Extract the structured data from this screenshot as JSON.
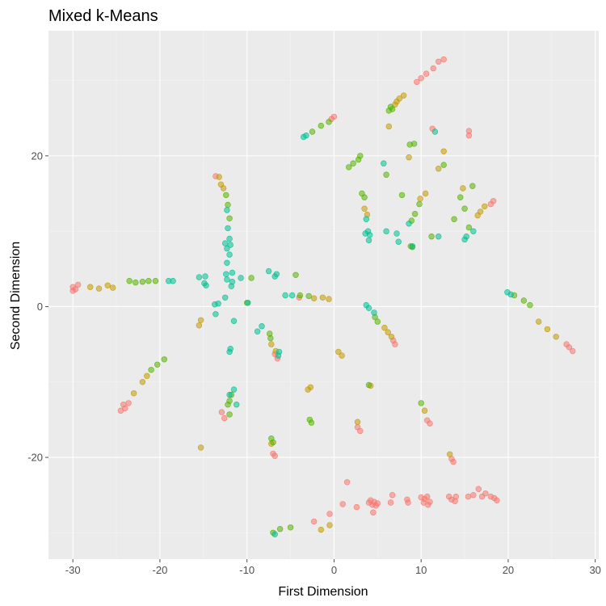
{
  "chart_data": {
    "type": "scatter",
    "title": "Mixed k-Means",
    "xlabel": "First Dimension",
    "ylabel": "Second Dimension",
    "xlim": [
      -32.8,
      30.4
    ],
    "ylim": [
      -33.5,
      36.6
    ],
    "x_ticks": [
      -30,
      -20,
      -10,
      0,
      10,
      20,
      30
    ],
    "y_ticks": [
      -20,
      0,
      20
    ],
    "grid": true,
    "legend": "none",
    "colors": [
      "#F8766D",
      "#C49A00",
      "#53B400",
      "#00C094"
    ],
    "background": "#EBEBEB",
    "point_opacity": 0.55,
    "series": [
      {
        "color": "#F8766D",
        "points": [
          [
            12.6,
            32.8
          ],
          [
            12.0,
            32.5
          ],
          [
            11.4,
            31.6
          ],
          [
            10.6,
            30.9
          ],
          [
            10.0,
            30.3
          ],
          [
            9.5,
            29.8
          ],
          [
            -30.0,
            2.6
          ],
          [
            -29.7,
            2.3
          ],
          [
            -29.4,
            2.9
          ],
          [
            -30.0,
            2.1
          ],
          [
            -24.0,
            -13.5
          ],
          [
            -24.5,
            -13.8
          ],
          [
            -23.6,
            -12.8
          ],
          [
            -24.2,
            -13.0
          ],
          [
            27.4,
            -5.9
          ],
          [
            27.0,
            -5.4
          ],
          [
            26.7,
            -5.0
          ],
          [
            7.0,
            -5.0
          ],
          [
            6.8,
            -4.5
          ],
          [
            -6.5,
            -6.9
          ],
          [
            -6.8,
            -6.3
          ],
          [
            -12.6,
            -14.8
          ],
          [
            -12.9,
            -14.0
          ],
          [
            -7.0,
            -19.5
          ],
          [
            -6.8,
            -19.8
          ],
          [
            13.5,
            -20.2
          ],
          [
            13.7,
            -20.6
          ],
          [
            11.0,
            -15.5
          ],
          [
            10.7,
            -15.1
          ],
          [
            3.0,
            -16.5
          ],
          [
            2.7,
            -16.0
          ],
          [
            11.3,
            23.6
          ],
          [
            15.5,
            23.3
          ],
          [
            15.5,
            22.7
          ],
          [
            -13.6,
            17.3
          ],
          [
            18.3,
            14.0
          ],
          [
            18.0,
            13.6
          ],
          [
            -4.0,
            1.2
          ],
          [
            0.0,
            25.2
          ],
          [
            -0.3,
            24.9
          ],
          [
            1.5,
            -23.3
          ],
          [
            -2.3,
            -28.5
          ],
          [
            -0.5,
            -27.5
          ],
          [
            1.0,
            -26.2
          ],
          [
            2.6,
            -26.6
          ],
          [
            4.0,
            -26.0
          ],
          [
            4.4,
            -26.3
          ],
          [
            4.6,
            -25.9
          ],
          [
            5.0,
            -26.1
          ],
          [
            4.2,
            -25.7
          ],
          [
            4.8,
            -26.4
          ],
          [
            4.5,
            -27.3
          ],
          [
            6.5,
            -26.0
          ],
          [
            6.7,
            -25.0
          ],
          [
            8.4,
            -25.6
          ],
          [
            8.5,
            -26.0
          ],
          [
            10.0,
            -25.3
          ],
          [
            10.4,
            -25.5
          ],
          [
            10.7,
            -25.2
          ],
          [
            11.0,
            -25.9
          ],
          [
            10.3,
            -26.0
          ],
          [
            10.8,
            -26.3
          ],
          [
            13.2,
            -25.2
          ],
          [
            13.5,
            -25.6
          ],
          [
            13.9,
            -25.8
          ],
          [
            14.0,
            -25.2
          ],
          [
            15.4,
            -25.2
          ],
          [
            16.0,
            -25.0
          ],
          [
            16.6,
            -24.2
          ],
          [
            17.0,
            -25.2
          ],
          [
            17.4,
            -24.8
          ],
          [
            18.0,
            -25.2
          ],
          [
            18.4,
            -25.4
          ],
          [
            18.7,
            -25.7
          ]
        ]
      },
      {
        "color": "#C49A00",
        "points": [
          [
            8.0,
            28.0
          ],
          [
            7.5,
            27.6
          ],
          [
            7.2,
            27.2
          ],
          [
            7.0,
            26.8
          ],
          [
            -28.0,
            2.6
          ],
          [
            -27.0,
            2.4
          ],
          [
            -26.0,
            2.8
          ],
          [
            -25.4,
            2.5
          ],
          [
            -23.0,
            -11.5
          ],
          [
            -22.0,
            -10.0
          ],
          [
            -21.5,
            -9.2
          ],
          [
            25.5,
            -4.0
          ],
          [
            24.5,
            -3.0
          ],
          [
            23.5,
            -2.0
          ],
          [
            -0.6,
            1.0
          ],
          [
            -1.3,
            1.2
          ],
          [
            -2.3,
            1.1
          ],
          [
            6.6,
            -4.0
          ],
          [
            6.2,
            -3.4
          ],
          [
            5.8,
            -2.8
          ],
          [
            -6.7,
            -5.9
          ],
          [
            -7.2,
            -5.0
          ],
          [
            -13.2,
            17.2
          ],
          [
            -13.0,
            16.2
          ],
          [
            -12.7,
            15.7
          ],
          [
            -7.2,
            -18.2
          ],
          [
            -1.5,
            -29.6
          ],
          [
            -0.5,
            -29.0
          ],
          [
            -3.0,
            -11.0
          ],
          [
            -2.7,
            -10.7
          ],
          [
            4.2,
            -10.5
          ],
          [
            0.9,
            -6.5
          ],
          [
            0.5,
            -6.0
          ],
          [
            -15.5,
            -2.5
          ],
          [
            -15.3,
            -1.8
          ],
          [
            -15.3,
            -18.7
          ],
          [
            3.5,
            13.0
          ],
          [
            3.8,
            12.2
          ],
          [
            6.3,
            23.9
          ],
          [
            8.6,
            19.8
          ],
          [
            10.5,
            15.0
          ],
          [
            9.9,
            14.3
          ],
          [
            12.6,
            20.6
          ],
          [
            14.8,
            15.7
          ],
          [
            17.3,
            13.3
          ],
          [
            16.8,
            12.6
          ],
          [
            16.5,
            12.1
          ],
          [
            13.3,
            -19.6
          ],
          [
            12.0,
            18.3
          ],
          [
            10.4,
            -13.8
          ],
          [
            2.7,
            -15.3
          ]
        ]
      },
      {
        "color": "#53B400",
        "points": [
          [
            6.5,
            26.5
          ],
          [
            6.3,
            26.0
          ],
          [
            -2.5,
            23.2
          ],
          [
            -1.5,
            24.0
          ],
          [
            -0.6,
            24.5
          ],
          [
            -23.5,
            3.4
          ],
          [
            -22.8,
            3.2
          ],
          [
            -22.0,
            3.3
          ],
          [
            -21.3,
            3.4
          ],
          [
            -20.5,
            3.4
          ],
          [
            -21.0,
            -8.4
          ],
          [
            -20.3,
            -7.7
          ],
          [
            -19.5,
            -7.0
          ],
          [
            22.5,
            0.2
          ],
          [
            21.8,
            0.8
          ],
          [
            20.7,
            1.5
          ],
          [
            -3.9,
            1.5
          ],
          [
            -2.9,
            1.4
          ],
          [
            -12.2,
            13.5
          ],
          [
            -12.0,
            11.7
          ],
          [
            -12.4,
            14.8
          ],
          [
            -12.2,
            -13.0
          ],
          [
            -12.0,
            -12.5
          ],
          [
            -11.8,
            -11.7
          ],
          [
            -7.2,
            -17.5
          ],
          [
            -7.0,
            -18.0
          ],
          [
            5.0,
            -2.0
          ],
          [
            4.7,
            -1.4
          ],
          [
            -7.3,
            -4.2
          ],
          [
            -7.4,
            -3.6
          ],
          [
            -7.0,
            -30.0
          ],
          [
            -6.2,
            -29.5
          ],
          [
            -5.0,
            -29.3
          ],
          [
            9.2,
            21.6
          ],
          [
            8.7,
            21.5
          ],
          [
            12.6,
            18.8
          ],
          [
            13.8,
            11.6
          ],
          [
            11.2,
            9.3
          ],
          [
            9.3,
            12.3
          ],
          [
            8.9,
            11.4
          ],
          [
            9.8,
            13.6
          ],
          [
            6.0,
            17.5
          ],
          [
            7.8,
            14.8
          ],
          [
            3.2,
            15.0
          ],
          [
            3.5,
            14.5
          ],
          [
            1.7,
            18.5
          ],
          [
            2.2,
            19.0
          ],
          [
            2.8,
            19.5
          ],
          [
            3.0,
            20.0
          ],
          [
            14.5,
            14.5
          ],
          [
            15.0,
            13.0
          ],
          [
            15.5,
            10.5
          ],
          [
            15.9,
            16.0
          ],
          [
            -12.0,
            -14.3
          ],
          [
            -2.8,
            -15.0
          ],
          [
            -2.6,
            -15.4
          ],
          [
            4.0,
            -10.4
          ],
          [
            10.0,
            -12.8
          ],
          [
            -4.4,
            4.2
          ],
          [
            -9.5,
            3.8
          ],
          [
            6.7,
            26.2
          ],
          [
            9.0,
            7.9
          ],
          [
            8.8,
            8.0
          ],
          [
            -10.0,
            0.5
          ]
        ]
      },
      {
        "color": "#00C094",
        "points": [
          [
            -3.5,
            22.5
          ],
          [
            -3.2,
            22.7
          ],
          [
            -19.0,
            3.4
          ],
          [
            -18.5,
            3.4
          ],
          [
            -15.5,
            3.9
          ],
          [
            -14.9,
            3.1
          ],
          [
            -14.7,
            2.8
          ],
          [
            -12.2,
            10.4
          ],
          [
            -12.5,
            8.4
          ],
          [
            -11.9,
            8.2
          ],
          [
            -12.3,
            7.7
          ],
          [
            -12.0,
            9.0
          ],
          [
            -12.0,
            6.9
          ],
          [
            -12.3,
            5.8
          ],
          [
            -12.3,
            3.6
          ],
          [
            -11.7,
            3.3
          ],
          [
            -11.8,
            2.7
          ],
          [
            -12.4,
            4.3
          ],
          [
            -12.5,
            1.2
          ],
          [
            -13.7,
            0.3
          ],
          [
            -13.3,
            0.4
          ],
          [
            -11.5,
            -1.9
          ],
          [
            -11.9,
            -5.6
          ],
          [
            -12.0,
            -6.0
          ],
          [
            -11.5,
            -11.0
          ],
          [
            -10.7,
            3.8
          ],
          [
            -9.9,
            0.5
          ],
          [
            -8.8,
            -3.3
          ],
          [
            -8.3,
            -2.6
          ],
          [
            -7.5,
            4.7
          ],
          [
            -6.8,
            4.0
          ],
          [
            -6.6,
            4.3
          ],
          [
            -13.6,
            -1.0
          ],
          [
            -5.6,
            1.5
          ],
          [
            -4.8,
            1.5
          ],
          [
            3.7,
            0.2
          ],
          [
            4.0,
            -0.2
          ],
          [
            4.6,
            -0.8
          ],
          [
            19.9,
            1.9
          ],
          [
            20.3,
            1.6
          ],
          [
            3.7,
            11.6
          ],
          [
            3.9,
            10.0
          ],
          [
            4.1,
            9.5
          ],
          [
            4.0,
            8.8
          ],
          [
            3.6,
            9.7
          ],
          [
            6.0,
            10.0
          ],
          [
            7.2,
            9.7
          ],
          [
            7.4,
            8.6
          ],
          [
            15.0,
            8.9
          ],
          [
            15.2,
            9.3
          ],
          [
            16.0,
            10.0
          ],
          [
            8.6,
            11.0
          ],
          [
            9.0,
            8.0
          ],
          [
            -6.4,
            -6.5
          ],
          [
            -6.3,
            -6.0
          ],
          [
            -11.2,
            -13.0
          ],
          [
            -12.0,
            -11.7
          ],
          [
            -6.8,
            -30.2
          ],
          [
            11.6,
            23.2
          ],
          [
            5.7,
            19.0
          ],
          [
            -11.7,
            4.5
          ],
          [
            -12.3,
            12.8
          ],
          [
            12.0,
            9.3
          ],
          [
            -14.8,
            4.0
          ]
        ]
      }
    ]
  }
}
